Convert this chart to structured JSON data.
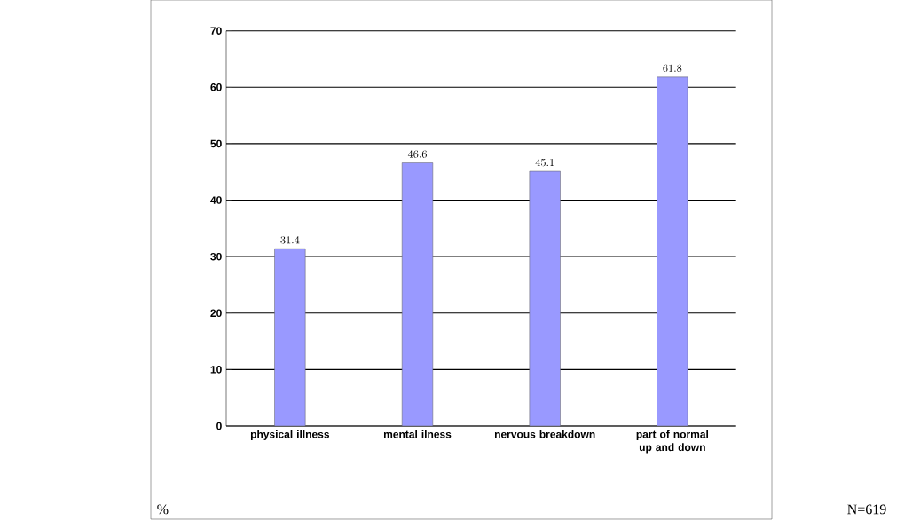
{
  "chart_data": {
    "type": "bar",
    "ylabel": "%",
    "categories": [
      "physical illness",
      "mental ilness",
      "nervous breakdown",
      "part of normal up and down"
    ],
    "values": [
      31.4,
      46.6,
      45.1,
      61.8
    ],
    "color": "#9999ff",
    "ylim": [
      0,
      70
    ],
    "yticks": [
      0,
      10,
      20,
      30,
      40,
      50,
      60,
      70
    ],
    "grid": "y",
    "data_labels": true,
    "annotations": [
      "N=619"
    ]
  }
}
